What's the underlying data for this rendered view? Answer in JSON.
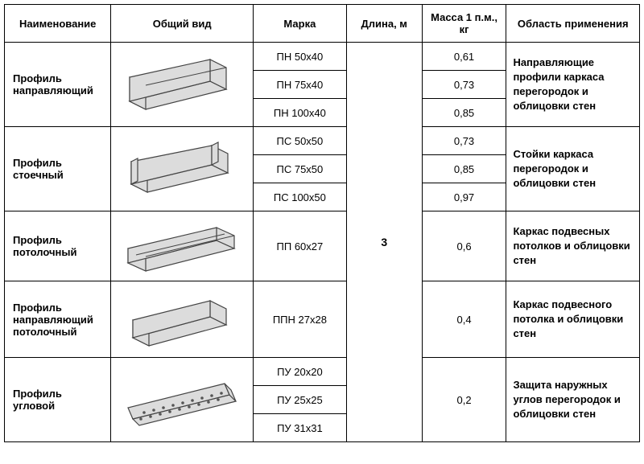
{
  "columns": {
    "name": "Наименование",
    "view": "Общий вид",
    "marka": "Марка",
    "length": "Длина, м",
    "mass": "Масса 1 п.м., кг",
    "app": "Область применения"
  },
  "length_value": "3",
  "groups": [
    {
      "name": "Профиль направляющий",
      "svg": "u-profile",
      "rows": [
        {
          "marka": "ПН 50х40",
          "mass": "0,61"
        },
        {
          "marka": "ПН 75х40",
          "mass": "0,73"
        },
        {
          "marka": "ПН 100х40",
          "mass": "0,85"
        }
      ],
      "app": "Направляющие профили каркаса перегородок и облицовки стен"
    },
    {
      "name": "Профиль стоечный",
      "svg": "c-profile",
      "rows": [
        {
          "marka": "ПС 50х50",
          "mass": "0,73"
        },
        {
          "marka": "ПС 75х50",
          "mass": "0,85"
        },
        {
          "marka": "ПС 100х50",
          "mass": "0,97"
        }
      ],
      "app": "Стойки каркаса перегородок и облицовки стен"
    },
    {
      "name": "Профиль потолочный",
      "svg": "wide-c",
      "rows": [
        {
          "marka": "ПП 60х27",
          "mass": "0,6"
        }
      ],
      "app": "Каркас подвесных потолков и облицовки стен"
    },
    {
      "name": "Профиль направляющий потолочный",
      "svg": "shallow-u",
      "rows": [
        {
          "marka": "ППН 27х28",
          "mass": "0,4"
        }
      ],
      "app": "Каркас подвесного потолка и облицовки стен"
    },
    {
      "name": "Профиль угловой",
      "svg": "angle",
      "rows": [
        {
          "marka": "ПУ 20х20",
          "mass": ""
        },
        {
          "marka": "ПУ 25х25",
          "mass": "0,2"
        },
        {
          "marka": "ПУ 31х31",
          "mass": ""
        }
      ],
      "app": "Защита наружных углов перегородок и облицовки стен",
      "mass_rowspan": 3
    }
  ],
  "style": {
    "border_color": "#000000",
    "background": "#ffffff",
    "text_color": "#000000",
    "header_fontsize": 13,
    "cell_fontsize": 13,
    "profile_stroke": "#444444",
    "profile_fill": "#dcdcdc"
  }
}
